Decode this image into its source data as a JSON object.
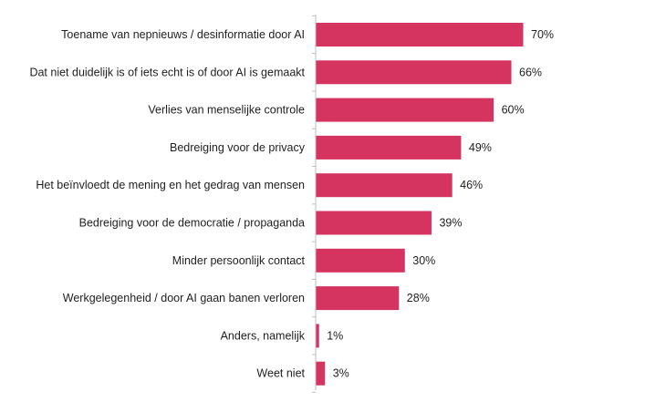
{
  "chart_data": {
    "type": "bar",
    "orientation": "horizontal",
    "categories": [
      "Toename van nepnieuws / desinformatie door AI",
      "Dat niet duidelijk is of iets echt is of door AI is gemaakt",
      "Verlies van menselijke controle",
      "Bedreiging voor de privacy",
      "Het beïnvloedt de mening en het gedrag van mensen",
      "Bedreiging voor de democratie / propaganda",
      "Minder persoonlijk contact",
      "Werkgelegenheid / door AI gaan banen verloren",
      "Anders, namelijk",
      "Weet niet"
    ],
    "values": [
      70,
      66,
      60,
      49,
      46,
      39,
      30,
      28,
      1,
      3
    ],
    "value_labels": [
      "70%",
      "66%",
      "60%",
      "49%",
      "46%",
      "39%",
      "30%",
      "28%",
      "1%",
      "3%"
    ],
    "xlim": [
      0,
      100
    ],
    "grid": false,
    "legend": "none",
    "colors": {
      "bar": "#d63460",
      "axis": "#bfbfbf",
      "text": "#1f1f1f"
    }
  }
}
